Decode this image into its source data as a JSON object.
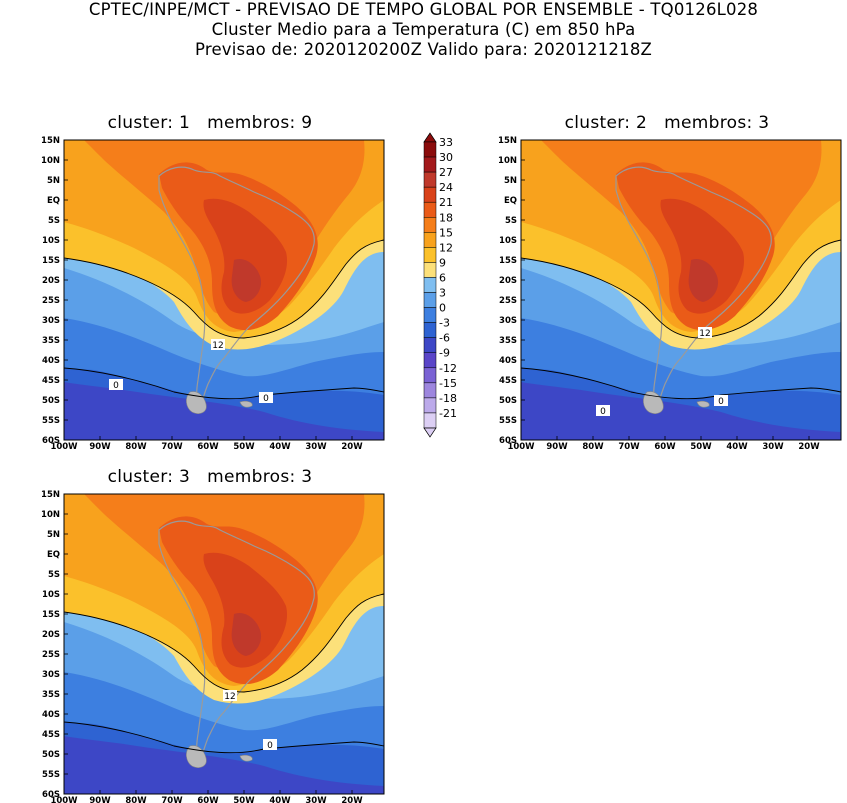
{
  "header": {
    "line1": "CPTEC/INPE/MCT - PREVISAO DE TEMPO GLOBAL POR ENSEMBLE - TQ0126L028",
    "line2": "Cluster Medio para a Temperatura (C) em 850 hPa",
    "line3": "Previsao de: 2020120200Z   Valido para: 2020121218Z"
  },
  "lat_labels": [
    "15N",
    "10N",
    "5N",
    "EQ",
    "5S",
    "10S",
    "15S",
    "20S",
    "25S",
    "30S",
    "35S",
    "40S",
    "45S",
    "50S",
    "55S",
    "60S"
  ],
  "lon_labels": [
    "100W",
    "90W",
    "80W",
    "70W",
    "60W",
    "50W",
    "40W",
    "30W",
    "20W"
  ],
  "colorbar": {
    "levels": [
      "33",
      "30",
      "27",
      "24",
      "21",
      "18",
      "15",
      "12",
      "9",
      "6",
      "3",
      "0",
      "-3",
      "-6",
      "-9",
      "-12",
      "-15",
      "-18",
      "-21"
    ],
    "colors": [
      "#8b0c0c",
      "#a3191b",
      "#c0392b",
      "#d9421a",
      "#ea5b18",
      "#f57e1a",
      "#f8a21d",
      "#fbc12b",
      "#fce07a",
      "#7fbef0",
      "#5b9fe8",
      "#3d7fe0",
      "#2e63d2",
      "#3d47c6",
      "#5a45c8",
      "#7a62d4",
      "#9d86de",
      "#bcaaea",
      "#dccff4"
    ]
  },
  "panels": [
    {
      "id": "cluster1",
      "title": "cluster: 1   membros: 9",
      "contour_labels": [
        "12",
        "0",
        "0"
      ]
    },
    {
      "id": "cluster2",
      "title": "cluster: 2   membros: 3",
      "contour_labels": [
        "12",
        "0",
        "0"
      ]
    },
    {
      "id": "cluster3",
      "title": "cluster: 3   membros: 3",
      "contour_labels": [
        "12",
        "0"
      ]
    }
  ]
}
